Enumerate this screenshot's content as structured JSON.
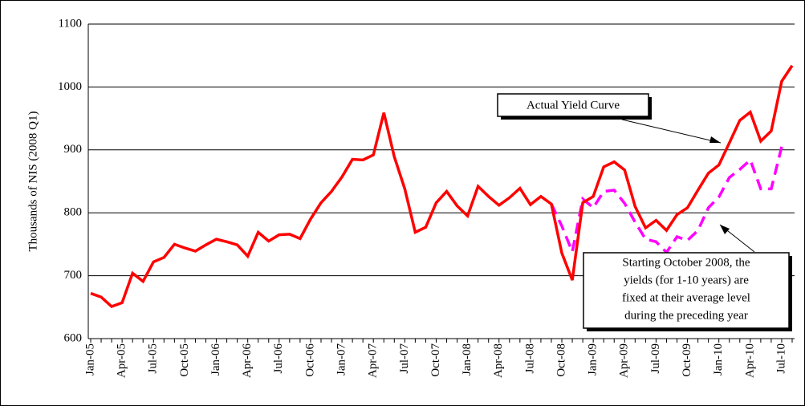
{
  "chart_data": {
    "type": "line",
    "y_label": "Thousands of NIS (2008 Q1)",
    "categories": [
      "Jan-05",
      null,
      null,
      "Apr-05",
      null,
      null,
      "Jul-05",
      null,
      null,
      "Oct-05",
      null,
      null,
      "Jan-06",
      null,
      null,
      "Apr-06",
      null,
      null,
      "Jul-06",
      null,
      null,
      "Oct-06",
      null,
      null,
      "Jan-07",
      null,
      null,
      "Apr-07",
      null,
      null,
      "Jul-07",
      null,
      null,
      "Oct-07",
      null,
      null,
      "Jan-08",
      null,
      null,
      "Apr-08",
      null,
      null,
      "Jul-08",
      null,
      null,
      "Oct-08",
      null,
      null,
      "Jan-09",
      null,
      null,
      "Apr-09",
      null,
      null,
      "Jul-09",
      null,
      null,
      "Oct-09",
      null,
      null,
      "Jan-10",
      null,
      null,
      "Apr-10",
      null,
      null,
      "Jul-10",
      null
    ],
    "series": [
      {
        "color": "#ff0000",
        "dash": false,
        "values": [
          672,
          666,
          651,
          657,
          704,
          691,
          722,
          729,
          750,
          744,
          739,
          749,
          758,
          754,
          749,
          731,
          769,
          755,
          765,
          766,
          759,
          790,
          816,
          834,
          857,
          885,
          884,
          892,
          959,
          889,
          838,
          769,
          777,
          816,
          834,
          811,
          795,
          842,
          826,
          812,
          824,
          839,
          813,
          826,
          814,
          736,
          693,
          816,
          826,
          873,
          881,
          868,
          810,
          776,
          788,
          772,
          797,
          808,
          836,
          863,
          876,
          911,
          947,
          960,
          914,
          930,
          1009,
          1034
        ]
      },
      {
        "color": "#ff00ff",
        "dash": true,
        "values": [
          null,
          null,
          null,
          null,
          null,
          null,
          null,
          null,
          null,
          null,
          null,
          null,
          null,
          null,
          null,
          null,
          null,
          null,
          null,
          null,
          null,
          null,
          null,
          null,
          null,
          null,
          null,
          null,
          null,
          null,
          null,
          null,
          null,
          null,
          null,
          null,
          null,
          null,
          null,
          null,
          null,
          null,
          null,
          null,
          814,
          779,
          738,
          822,
          808,
          834,
          836,
          815,
          785,
          758,
          754,
          737,
          762,
          756,
          772,
          808,
          825,
          856,
          869,
          884,
          838,
          838,
          905,
          null
        ]
      }
    ],
    "ylim": [
      600,
      1100
    ],
    "yticks": [
      600,
      700,
      800,
      900,
      1000,
      1100
    ],
    "grid": true,
    "annotations": [
      {
        "text": [
          "Actual Yield Curve"
        ]
      },
      {
        "text": [
          "Starting October 2008, the",
          "yields (for 1-10 years) are",
          "fixed at their average level",
          "during the preceding year"
        ]
      }
    ]
  }
}
